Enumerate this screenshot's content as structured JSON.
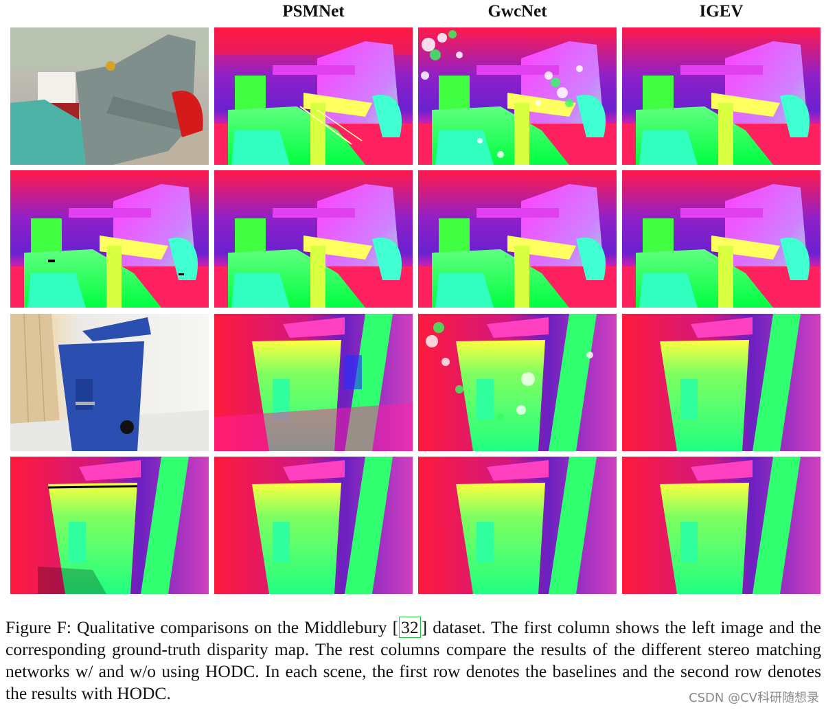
{
  "columns": [
    "PSMNet",
    "GwcNet",
    "IGEV"
  ],
  "caption": {
    "text_before": "Figure F: Qualitative comparisons on the Middlebury [",
    "ref": "32",
    "text_after": "] dataset. The first column shows the left image and the corresponding ground-truth disparity map. The rest columns compare the results of the different stereo matching networks w/ and w/o using HODC. In each scene, the first row denotes the baselines and the second row denotes the results with HODC."
  },
  "watermark": "CSDN @CV科研随想录",
  "rows": [
    {
      "scene": "chair",
      "first_cell": "left-image"
    },
    {
      "scene": "chair",
      "first_cell": "ground-truth"
    },
    {
      "scene": "bin",
      "first_cell": "left-image"
    },
    {
      "scene": "bin",
      "first_cell": "ground-truth"
    }
  ],
  "colors": {
    "magenta": "#ff00ff",
    "red": "#ff1a3c",
    "green": "#00ff40",
    "cyan": "#30ffd0",
    "yellow": "#ffff40",
    "purple": "#8020d0",
    "bin_blue": "#2a4fb0",
    "ref_box": "#22c43a"
  }
}
